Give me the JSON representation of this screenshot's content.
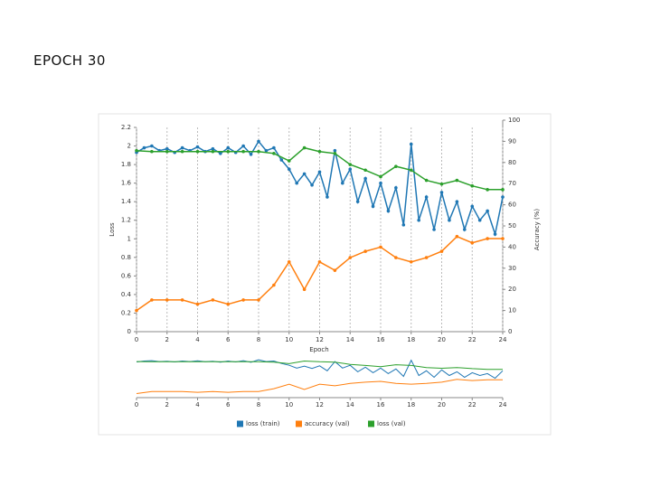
{
  "title": "EPOCH 30",
  "chart_data": {
    "type": "line",
    "xlabel": "Epoch",
    "ylabel": "Loss",
    "y2label": "Accuracy (%)",
    "xlim": [
      0,
      24
    ],
    "xticks": [
      0,
      2,
      4,
      6,
      8,
      10,
      12,
      14,
      16,
      18,
      20,
      22,
      24
    ],
    "ylim": [
      0,
      2.2
    ],
    "yticks": [
      0,
      0.2,
      0.4,
      0.6,
      0.8,
      1,
      1.2,
      1.4,
      1.6,
      1.8,
      2,
      2.2
    ],
    "y2lim": [
      0,
      100
    ],
    "y2ticks": [
      0,
      10,
      20,
      30,
      40,
      50,
      60,
      70,
      80,
      90,
      100
    ],
    "grid": true,
    "legend": "bottom",
    "series": [
      {
        "name": "loss (train)",
        "color": "#1f77b4",
        "x": [
          0,
          0.5,
          1,
          1.5,
          2,
          2.5,
          3,
          3.5,
          4,
          4.5,
          5,
          5.5,
          6,
          6.5,
          7,
          7.5,
          8,
          8.5,
          9,
          9.5,
          10,
          10.5,
          11,
          11.5,
          12,
          12.5,
          13,
          13.5,
          14,
          14.5,
          15,
          15.5,
          16,
          16.5,
          17,
          17.5,
          18,
          18.5,
          19,
          19.5,
          20,
          20.5,
          21,
          21.5,
          22,
          22.5,
          23,
          23.5,
          24
        ],
        "values": [
          1.93,
          1.98,
          2.0,
          1.95,
          1.97,
          1.93,
          1.98,
          1.95,
          1.99,
          1.94,
          1.97,
          1.92,
          1.98,
          1.93,
          2.0,
          1.91,
          2.05,
          1.95,
          1.98,
          1.85,
          1.75,
          1.6,
          1.7,
          1.58,
          1.72,
          1.45,
          1.95,
          1.6,
          1.75,
          1.4,
          1.65,
          1.35,
          1.6,
          1.3,
          1.55,
          1.15,
          2.02,
          1.2,
          1.45,
          1.1,
          1.5,
          1.2,
          1.4,
          1.1,
          1.35,
          1.2,
          1.3,
          1.05,
          1.45
        ]
      },
      {
        "name": "accuracy (val)",
        "color": "#ff7f0e",
        "axis": "y2",
        "x": [
          0,
          1,
          2,
          3,
          4,
          5,
          6,
          7,
          8,
          9,
          10,
          11,
          12,
          13,
          14,
          15,
          16,
          17,
          18,
          19,
          20,
          21,
          22,
          23,
          24
        ],
        "values": [
          10,
          15,
          15,
          15,
          13,
          15,
          13,
          15,
          15,
          22,
          33,
          20,
          33,
          29,
          35,
          38,
          40,
          35,
          33,
          35,
          38,
          45,
          42,
          44,
          44
        ]
      },
      {
        "name": "loss (val)",
        "color": "#2ca02c",
        "x": [
          0,
          1,
          2,
          3,
          4,
          5,
          6,
          7,
          8,
          9,
          10,
          11,
          12,
          13,
          14,
          15,
          16,
          17,
          18,
          19,
          20,
          21,
          22,
          23,
          24
        ],
        "values": [
          1.95,
          1.94,
          1.94,
          1.94,
          1.94,
          1.94,
          1.94,
          1.94,
          1.94,
          1.92,
          1.84,
          1.98,
          1.94,
          1.92,
          1.8,
          1.74,
          1.67,
          1.78,
          1.74,
          1.63,
          1.59,
          1.63,
          1.57,
          1.53,
          1.53
        ]
      }
    ]
  }
}
